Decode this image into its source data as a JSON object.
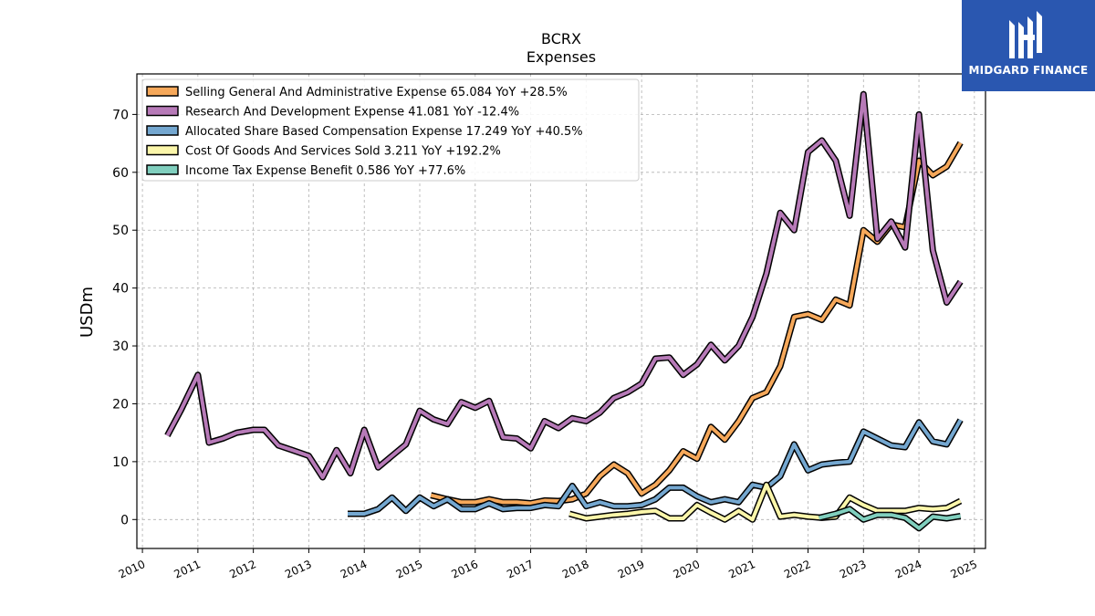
{
  "logo": {
    "text": "MIDGARD FINANCE"
  },
  "colors": {
    "sga": "#f6a85a",
    "rnd": "#b77ab8",
    "sbc": "#74a7d0",
    "cogs": "#fbf6aa",
    "tax": "#80cfbe"
  },
  "chart_data": {
    "type": "line",
    "title": "BCRX",
    "subtitle": "Expenses",
    "xlabel": "",
    "ylabel": "USDm",
    "xlim": [
      2009.9,
      2025.2
    ],
    "ylim": [
      -5,
      77
    ],
    "x_ticks": [
      "2010",
      "2011",
      "2012",
      "2013",
      "2014",
      "2015",
      "2016",
      "2017",
      "2018",
      "2019",
      "2020",
      "2021",
      "2022",
      "2023",
      "2024",
      "2025"
    ],
    "y_ticks": [
      0,
      10,
      20,
      30,
      40,
      50,
      60,
      70
    ],
    "grid": true,
    "legend_position": "top-left",
    "series": [
      {
        "name": "Selling General And Administrative Expense  65.084 YoY +28.5%",
        "color_key": "sga",
        "points": [
          [
            2015.2,
            4.2
          ],
          [
            2015.5,
            3.5
          ],
          [
            2015.75,
            3.0
          ],
          [
            2016.0,
            3.0
          ],
          [
            2016.25,
            3.5
          ],
          [
            2016.5,
            3.0
          ],
          [
            2016.75,
            3.0
          ],
          [
            2017.0,
            2.8
          ],
          [
            2017.25,
            3.3
          ],
          [
            2017.5,
            3.2
          ],
          [
            2017.75,
            3.5
          ],
          [
            2018.0,
            4.5
          ],
          [
            2018.25,
            7.5
          ],
          [
            2018.5,
            9.5
          ],
          [
            2018.75,
            8.0
          ],
          [
            2019.0,
            4.5
          ],
          [
            2019.25,
            6.0
          ],
          [
            2019.5,
            8.5
          ],
          [
            2019.75,
            11.8
          ],
          [
            2020.0,
            10.5
          ],
          [
            2020.25,
            16.0
          ],
          [
            2020.5,
            13.8
          ],
          [
            2020.75,
            17.0
          ],
          [
            2021.0,
            21.0
          ],
          [
            2021.25,
            22.0
          ],
          [
            2021.5,
            26.5
          ],
          [
            2021.75,
            35.0
          ],
          [
            2022.0,
            35.5
          ],
          [
            2022.25,
            34.5
          ],
          [
            2022.5,
            38.0
          ],
          [
            2022.75,
            37.0
          ],
          [
            2023.0,
            50.0
          ],
          [
            2023.25,
            48.0
          ],
          [
            2023.5,
            51.0
          ],
          [
            2023.75,
            50.5
          ],
          [
            2024.0,
            62.0
          ],
          [
            2024.25,
            59.5
          ],
          [
            2024.5,
            61.0
          ],
          [
            2024.75,
            65.1
          ]
        ]
      },
      {
        "name": "Research And Development Expense  41.081 YoY -12.4%",
        "color_key": "rnd",
        "points": [
          [
            2010.45,
            14.5
          ],
          [
            2010.7,
            19.0
          ],
          [
            2011.0,
            25.0
          ],
          [
            2011.2,
            13.3
          ],
          [
            2011.45,
            14.0
          ],
          [
            2011.7,
            15.0
          ],
          [
            2012.0,
            15.5
          ],
          [
            2012.2,
            15.5
          ],
          [
            2012.45,
            12.8
          ],
          [
            2012.7,
            12.0
          ],
          [
            2013.0,
            11.0
          ],
          [
            2013.25,
            7.3
          ],
          [
            2013.5,
            12.0
          ],
          [
            2013.75,
            8.0
          ],
          [
            2014.0,
            15.5
          ],
          [
            2014.25,
            9.0
          ],
          [
            2014.5,
            11.0
          ],
          [
            2014.75,
            13.0
          ],
          [
            2015.0,
            18.8
          ],
          [
            2015.25,
            17.3
          ],
          [
            2015.5,
            16.5
          ],
          [
            2015.75,
            20.3
          ],
          [
            2016.0,
            19.3
          ],
          [
            2016.25,
            20.5
          ],
          [
            2016.5,
            14.2
          ],
          [
            2016.75,
            14.0
          ],
          [
            2017.0,
            12.3
          ],
          [
            2017.25,
            17.0
          ],
          [
            2017.5,
            15.8
          ],
          [
            2017.75,
            17.5
          ],
          [
            2018.0,
            17.0
          ],
          [
            2018.25,
            18.5
          ],
          [
            2018.5,
            21.0
          ],
          [
            2018.75,
            22.0
          ],
          [
            2019.0,
            23.5
          ],
          [
            2019.25,
            27.8
          ],
          [
            2019.5,
            28.0
          ],
          [
            2019.75,
            25.0
          ],
          [
            2020.0,
            26.8
          ],
          [
            2020.25,
            30.2
          ],
          [
            2020.5,
            27.5
          ],
          [
            2020.75,
            30.0
          ],
          [
            2021.0,
            35.0
          ],
          [
            2021.25,
            42.5
          ],
          [
            2021.5,
            53.0
          ],
          [
            2021.75,
            50.0
          ],
          [
            2022.0,
            63.5
          ],
          [
            2022.25,
            65.5
          ],
          [
            2022.5,
            62.0
          ],
          [
            2022.75,
            52.5
          ],
          [
            2023.0,
            73.5
          ],
          [
            2023.25,
            48.5
          ],
          [
            2023.5,
            51.5
          ],
          [
            2023.75,
            47.0
          ],
          [
            2024.0,
            70.0
          ],
          [
            2024.25,
            46.5
          ],
          [
            2024.5,
            37.5
          ],
          [
            2024.75,
            41.1
          ]
        ]
      },
      {
        "name": "Allocated Share Based Compensation Expense  17.249 YoY +40.5%",
        "color_key": "sbc",
        "points": [
          [
            2013.7,
            1.0
          ],
          [
            2014.0,
            1.0
          ],
          [
            2014.25,
            1.8
          ],
          [
            2014.5,
            3.8
          ],
          [
            2014.75,
            1.5
          ],
          [
            2015.0,
            3.8
          ],
          [
            2015.25,
            2.3
          ],
          [
            2015.5,
            3.5
          ],
          [
            2015.75,
            1.8
          ],
          [
            2016.0,
            1.8
          ],
          [
            2016.25,
            2.8
          ],
          [
            2016.5,
            1.8
          ],
          [
            2016.75,
            2.0
          ],
          [
            2017.0,
            2.0
          ],
          [
            2017.25,
            2.5
          ],
          [
            2017.5,
            2.3
          ],
          [
            2017.75,
            5.8
          ],
          [
            2018.0,
            2.3
          ],
          [
            2018.25,
            3.0
          ],
          [
            2018.5,
            2.3
          ],
          [
            2018.75,
            2.3
          ],
          [
            2019.0,
            2.5
          ],
          [
            2019.25,
            3.5
          ],
          [
            2019.5,
            5.5
          ],
          [
            2019.75,
            5.5
          ],
          [
            2020.0,
            4.0
          ],
          [
            2020.25,
            3.0
          ],
          [
            2020.5,
            3.5
          ],
          [
            2020.75,
            3.0
          ],
          [
            2021.0,
            6.0
          ],
          [
            2021.25,
            5.5
          ],
          [
            2021.5,
            7.5
          ],
          [
            2021.75,
            13.0
          ],
          [
            2022.0,
            8.5
          ],
          [
            2022.25,
            9.5
          ],
          [
            2022.5,
            9.8
          ],
          [
            2022.75,
            10.0
          ],
          [
            2023.0,
            15.2
          ],
          [
            2023.25,
            14.0
          ],
          [
            2023.5,
            12.8
          ],
          [
            2023.75,
            12.5
          ],
          [
            2024.0,
            16.8
          ],
          [
            2024.25,
            13.5
          ],
          [
            2024.5,
            13.0
          ],
          [
            2024.75,
            17.2
          ]
        ]
      },
      {
        "name": "Cost Of Goods And Services Sold  3.211 YoY +192.2%",
        "color_key": "cogs",
        "points": [
          [
            2017.7,
            1.0
          ],
          [
            2018.0,
            0.2
          ],
          [
            2018.25,
            0.5
          ],
          [
            2018.5,
            0.8
          ],
          [
            2018.75,
            1.0
          ],
          [
            2019.0,
            1.3
          ],
          [
            2019.25,
            1.5
          ],
          [
            2019.5,
            0.2
          ],
          [
            2019.75,
            0.2
          ],
          [
            2020.0,
            2.5
          ],
          [
            2020.25,
            1.2
          ],
          [
            2020.5,
            0.0
          ],
          [
            2020.75,
            1.5
          ],
          [
            2021.0,
            0.0
          ],
          [
            2021.25,
            6.0
          ],
          [
            2021.5,
            0.5
          ],
          [
            2021.75,
            0.8
          ],
          [
            2022.0,
            0.5
          ],
          [
            2022.25,
            0.3
          ],
          [
            2022.5,
            0.5
          ],
          [
            2022.75,
            3.8
          ],
          [
            2023.0,
            2.5
          ],
          [
            2023.25,
            1.5
          ],
          [
            2023.5,
            1.5
          ],
          [
            2023.75,
            1.5
          ],
          [
            2024.0,
            2.0
          ],
          [
            2024.25,
            1.8
          ],
          [
            2024.5,
            2.0
          ],
          [
            2024.75,
            3.2
          ]
        ]
      },
      {
        "name": "Income Tax Expense Benefit  0.586 YoY +77.6%",
        "color_key": "tax",
        "points": [
          [
            2022.2,
            0.3
          ],
          [
            2022.5,
            1.0
          ],
          [
            2022.75,
            1.8
          ],
          [
            2023.0,
            0.0
          ],
          [
            2023.25,
            0.8
          ],
          [
            2023.5,
            0.8
          ],
          [
            2023.75,
            0.3
          ],
          [
            2024.0,
            -1.5
          ],
          [
            2024.25,
            0.5
          ],
          [
            2024.5,
            0.2
          ],
          [
            2024.75,
            0.6
          ]
        ]
      }
    ]
  }
}
